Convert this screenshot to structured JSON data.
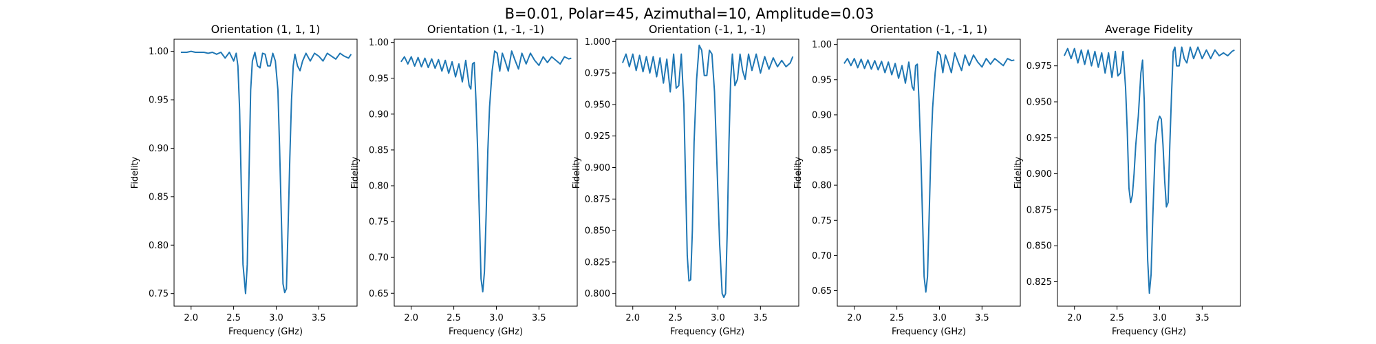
{
  "figure": {
    "suptitle": "B=0.01, Polar=45, Azimuthal=10, Amplitude=0.03",
    "line_color": "#1f77b4"
  },
  "chart_data": [
    {
      "type": "line",
      "title": "Orientation (1, 1, 1)",
      "xlabel": "Frequency (GHz)",
      "ylabel": "Fidelity",
      "xlim": [
        1.8,
        3.95
      ],
      "ylim": [
        0.737,
        1.0125
      ],
      "xticks": [
        2.0,
        2.5,
        3.0,
        3.5
      ],
      "xtick_labels": [
        "2.0",
        "2.5",
        "3.0",
        "3.5"
      ],
      "yticks": [
        0.75,
        0.8,
        0.85,
        0.9,
        0.95,
        1.0
      ],
      "ytick_labels": [
        "0.75",
        "0.80",
        "0.85",
        "0.90",
        "0.95",
        "1.00"
      ],
      "grid": false,
      "x": [
        1.88,
        1.95,
        2.0,
        2.05,
        2.1,
        2.15,
        2.2,
        2.25,
        2.3,
        2.35,
        2.4,
        2.45,
        2.5,
        2.53,
        2.55,
        2.57,
        2.59,
        2.61,
        2.63,
        2.64,
        2.66,
        2.68,
        2.7,
        2.72,
        2.75,
        2.78,
        2.81,
        2.84,
        2.87,
        2.9,
        2.93,
        2.96,
        2.99,
        3.02,
        3.04,
        3.06,
        3.08,
        3.1,
        3.12,
        3.14,
        3.16,
        3.18,
        3.2,
        3.22,
        3.25,
        3.28,
        3.31,
        3.35,
        3.4,
        3.45,
        3.5,
        3.55,
        3.6,
        3.65,
        3.7,
        3.75,
        3.8,
        3.85,
        3.88
      ],
      "y": [
        0.999,
        0.999,
        1.0,
        0.999,
        0.999,
        0.999,
        0.998,
        0.999,
        0.997,
        0.999,
        0.993,
        0.999,
        0.99,
        0.998,
        0.985,
        0.94,
        0.86,
        0.78,
        0.76,
        0.75,
        0.78,
        0.87,
        0.96,
        0.99,
        0.999,
        0.985,
        0.983,
        0.998,
        0.997,
        0.985,
        0.985,
        0.998,
        0.99,
        0.96,
        0.9,
        0.83,
        0.76,
        0.751,
        0.755,
        0.82,
        0.89,
        0.95,
        0.985,
        0.997,
        0.985,
        0.98,
        0.99,
        0.998,
        0.99,
        0.998,
        0.995,
        0.99,
        0.998,
        0.995,
        0.992,
        0.998,
        0.995,
        0.993,
        0.997
      ]
    },
    {
      "type": "line",
      "title": "Orientation (1, -1, -1)",
      "xlabel": "Frequency (GHz)",
      "ylabel": "Fidelity",
      "xlim": [
        1.8,
        3.95
      ],
      "ylim": [
        0.632,
        1.0045
      ],
      "xticks": [
        2.0,
        2.5,
        3.0,
        3.5
      ],
      "xtick_labels": [
        "2.0",
        "2.5",
        "3.0",
        "3.5"
      ],
      "yticks": [
        0.65,
        0.7,
        0.75,
        0.8,
        0.85,
        0.9,
        0.95,
        1.0
      ],
      "ytick_labels": [
        "0.65",
        "0.70",
        "0.75",
        "0.80",
        "0.85",
        "0.90",
        "0.95",
        "1.00"
      ],
      "grid": false,
      "x": [
        1.88,
        1.92,
        1.96,
        2.0,
        2.04,
        2.08,
        2.12,
        2.16,
        2.2,
        2.24,
        2.28,
        2.32,
        2.36,
        2.4,
        2.44,
        2.48,
        2.52,
        2.56,
        2.6,
        2.64,
        2.68,
        2.7,
        2.72,
        2.74,
        2.76,
        2.78,
        2.8,
        2.82,
        2.84,
        2.86,
        2.88,
        2.9,
        2.92,
        2.95,
        2.98,
        3.01,
        3.04,
        3.07,
        3.1,
        3.14,
        3.18,
        3.22,
        3.26,
        3.3,
        3.35,
        3.4,
        3.45,
        3.5,
        3.55,
        3.6,
        3.65,
        3.7,
        3.75,
        3.8,
        3.85,
        3.88
      ],
      "y": [
        0.973,
        0.98,
        0.97,
        0.98,
        0.967,
        0.979,
        0.966,
        0.978,
        0.965,
        0.977,
        0.964,
        0.976,
        0.96,
        0.975,
        0.957,
        0.973,
        0.952,
        0.97,
        0.945,
        0.975,
        0.94,
        0.935,
        0.97,
        0.972,
        0.92,
        0.85,
        0.76,
        0.67,
        0.652,
        0.68,
        0.76,
        0.85,
        0.91,
        0.96,
        0.988,
        0.985,
        0.96,
        0.985,
        0.975,
        0.96,
        0.988,
        0.975,
        0.963,
        0.985,
        0.97,
        0.985,
        0.975,
        0.968,
        0.98,
        0.972,
        0.98,
        0.975,
        0.97,
        0.98,
        0.977,
        0.978
      ]
    },
    {
      "type": "line",
      "title": "Orientation (-1, 1, -1)",
      "xlabel": "Frequency (GHz)",
      "ylabel": "Fidelity",
      "xlim": [
        1.8,
        3.95
      ],
      "ylim": [
        0.79,
        1.0018
      ],
      "xticks": [
        2.0,
        2.5,
        3.0,
        3.5
      ],
      "xtick_labels": [
        "2.0",
        "2.5",
        "3.0",
        "3.5"
      ],
      "yticks": [
        0.8,
        0.825,
        0.85,
        0.875,
        0.9,
        0.925,
        0.95,
        0.975,
        1.0
      ],
      "ytick_labels": [
        "0.800",
        "0.825",
        "0.850",
        "0.875",
        "0.900",
        "0.925",
        "0.950",
        "0.975",
        "1.000"
      ],
      "grid": false,
      "x": [
        1.88,
        1.92,
        1.96,
        2.0,
        2.04,
        2.08,
        2.12,
        2.16,
        2.2,
        2.24,
        2.28,
        2.32,
        2.36,
        2.4,
        2.44,
        2.48,
        2.51,
        2.54,
        2.57,
        2.6,
        2.62,
        2.64,
        2.66,
        2.68,
        2.7,
        2.72,
        2.75,
        2.78,
        2.81,
        2.84,
        2.87,
        2.9,
        2.93,
        2.96,
        2.99,
        3.02,
        3.05,
        3.07,
        3.09,
        3.11,
        3.13,
        3.15,
        3.17,
        3.2,
        3.23,
        3.26,
        3.29,
        3.32,
        3.36,
        3.4,
        3.45,
        3.5,
        3.55,
        3.6,
        3.65,
        3.7,
        3.75,
        3.8,
        3.85,
        3.88
      ],
      "y": [
        0.983,
        0.99,
        0.98,
        0.99,
        0.977,
        0.989,
        0.976,
        0.988,
        0.975,
        0.988,
        0.972,
        0.987,
        0.967,
        0.986,
        0.96,
        0.99,
        0.963,
        0.965,
        0.99,
        0.95,
        0.89,
        0.83,
        0.81,
        0.811,
        0.85,
        0.92,
        0.97,
        0.997,
        0.993,
        0.973,
        0.973,
        0.993,
        0.99,
        0.96,
        0.9,
        0.84,
        0.8,
        0.797,
        0.8,
        0.85,
        0.92,
        0.97,
        0.99,
        0.965,
        0.97,
        0.99,
        0.977,
        0.97,
        0.99,
        0.977,
        0.99,
        0.975,
        0.988,
        0.978,
        0.987,
        0.98,
        0.985,
        0.98,
        0.983,
        0.988
      ]
    },
    {
      "type": "line",
      "title": "Orientation (-1, -1, 1)",
      "xlabel": "Frequency (GHz)",
      "ylabel": "Fidelity",
      "xlim": [
        1.8,
        3.95
      ],
      "ylim": [
        0.628,
        1.0075
      ],
      "xticks": [
        2.0,
        2.5,
        3.0,
        3.5
      ],
      "xtick_labels": [
        "2.0",
        "2.5",
        "3.0",
        "3.5"
      ],
      "yticks": [
        0.65,
        0.7,
        0.75,
        0.8,
        0.85,
        0.9,
        0.95,
        1.0
      ],
      "ytick_labels": [
        "0.65",
        "0.70",
        "0.75",
        "0.80",
        "0.85",
        "0.90",
        "0.95",
        "1.00"
      ],
      "grid": false,
      "x": [
        1.88,
        1.92,
        1.96,
        2.0,
        2.04,
        2.08,
        2.12,
        2.16,
        2.2,
        2.24,
        2.28,
        2.32,
        2.36,
        2.4,
        2.44,
        2.48,
        2.52,
        2.56,
        2.6,
        2.64,
        2.68,
        2.7,
        2.72,
        2.74,
        2.76,
        2.78,
        2.8,
        2.82,
        2.84,
        2.86,
        2.88,
        2.9,
        2.92,
        2.95,
        2.98,
        3.01,
        3.04,
        3.07,
        3.1,
        3.14,
        3.18,
        3.22,
        3.26,
        3.3,
        3.35,
        3.4,
        3.45,
        3.5,
        3.55,
        3.6,
        3.65,
        3.7,
        3.75,
        3.8,
        3.85,
        3.88
      ],
      "y": [
        0.973,
        0.98,
        0.97,
        0.98,
        0.967,
        0.979,
        0.966,
        0.978,
        0.965,
        0.977,
        0.964,
        0.976,
        0.96,
        0.975,
        0.957,
        0.973,
        0.952,
        0.97,
        0.945,
        0.975,
        0.94,
        0.935,
        0.97,
        0.972,
        0.92,
        0.85,
        0.76,
        0.67,
        0.648,
        0.67,
        0.76,
        0.85,
        0.91,
        0.96,
        0.99,
        0.985,
        0.96,
        0.985,
        0.975,
        0.96,
        0.988,
        0.975,
        0.963,
        0.985,
        0.97,
        0.985,
        0.975,
        0.968,
        0.98,
        0.972,
        0.98,
        0.975,
        0.97,
        0.98,
        0.977,
        0.978
      ]
    },
    {
      "type": "line",
      "title": "Average Fidelity",
      "xlabel": "Frequency (GHz)",
      "ylabel": "Fidelity",
      "xlim": [
        1.8,
        3.95
      ],
      "ylim": [
        0.808,
        0.9935
      ],
      "xticks": [
        2.0,
        2.5,
        3.0,
        3.5
      ],
      "xtick_labels": [
        "2.0",
        "2.5",
        "3.0",
        "3.5"
      ],
      "yticks": [
        0.825,
        0.85,
        0.875,
        0.9,
        0.925,
        0.95,
        0.975
      ],
      "ytick_labels": [
        "0.825",
        "0.850",
        "0.875",
        "0.900",
        "0.925",
        "0.950",
        "0.975"
      ],
      "grid": false,
      "x": [
        1.88,
        1.92,
        1.96,
        2.0,
        2.04,
        2.08,
        2.12,
        2.16,
        2.2,
        2.24,
        2.28,
        2.32,
        2.36,
        2.4,
        2.44,
        2.48,
        2.51,
        2.54,
        2.57,
        2.6,
        2.62,
        2.64,
        2.66,
        2.68,
        2.7,
        2.72,
        2.75,
        2.78,
        2.8,
        2.82,
        2.84,
        2.86,
        2.88,
        2.9,
        2.92,
        2.95,
        2.98,
        3.0,
        3.02,
        3.04,
        3.06,
        3.08,
        3.1,
        3.12,
        3.14,
        3.16,
        3.18,
        3.2,
        3.23,
        3.26,
        3.29,
        3.32,
        3.36,
        3.4,
        3.45,
        3.5,
        3.55,
        3.6,
        3.65,
        3.7,
        3.75,
        3.8,
        3.85,
        3.88
      ],
      "y": [
        0.982,
        0.987,
        0.98,
        0.987,
        0.977,
        0.986,
        0.976,
        0.986,
        0.975,
        0.985,
        0.974,
        0.984,
        0.97,
        0.984,
        0.967,
        0.985,
        0.968,
        0.97,
        0.985,
        0.96,
        0.93,
        0.89,
        0.88,
        0.885,
        0.9,
        0.92,
        0.94,
        0.97,
        0.979,
        0.95,
        0.89,
        0.84,
        0.817,
        0.83,
        0.87,
        0.92,
        0.936,
        0.94,
        0.938,
        0.92,
        0.895,
        0.877,
        0.88,
        0.92,
        0.955,
        0.985,
        0.988,
        0.975,
        0.975,
        0.988,
        0.98,
        0.977,
        0.988,
        0.98,
        0.988,
        0.98,
        0.986,
        0.98,
        0.986,
        0.982,
        0.984,
        0.982,
        0.985,
        0.986
      ]
    }
  ]
}
